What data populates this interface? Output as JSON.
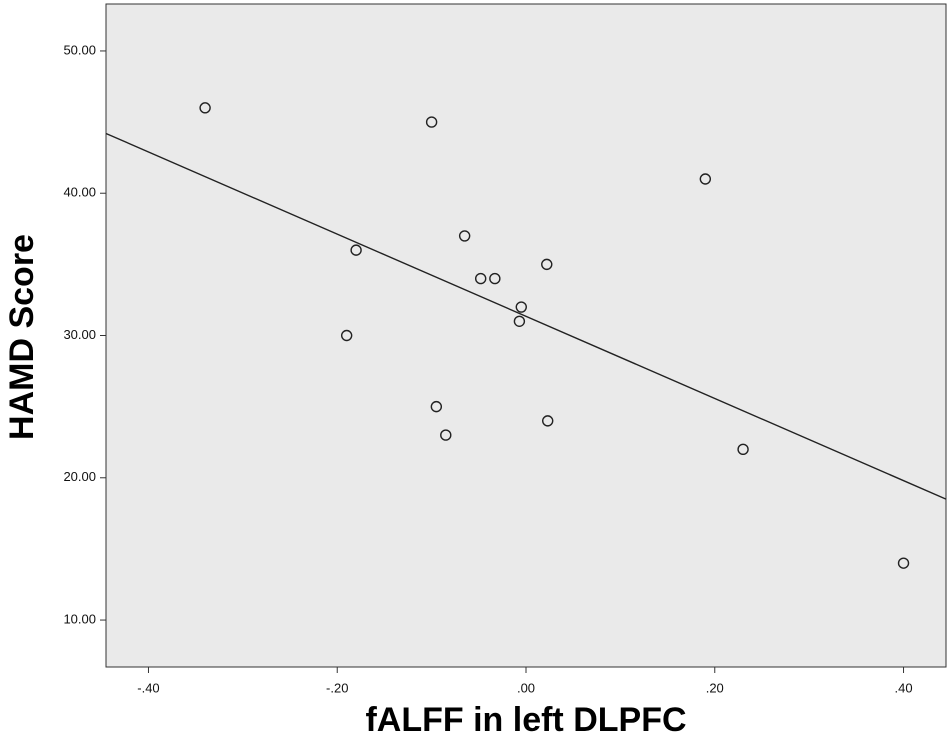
{
  "chart_data": {
    "type": "scatter",
    "title": "",
    "xlabel": "fALFF in left DLPFC",
    "ylabel": "HAMD Score",
    "xlim": [
      -0.445,
      0.445
    ],
    "ylim": [
      6.7,
      53.3
    ],
    "x_ticks": [
      -0.4,
      -0.2,
      0.0,
      0.2,
      0.4
    ],
    "x_tick_labels": [
      "-.40",
      "-.20",
      ".00",
      ".20",
      ".40"
    ],
    "y_ticks": [
      10,
      20,
      30,
      40,
      50
    ],
    "y_tick_labels": [
      "10.00",
      "20.00",
      "30.00",
      "40.00",
      "50.00"
    ],
    "grid": false,
    "series": [
      {
        "points": [
          {
            "x": -0.34,
            "y": 46
          },
          {
            "x": -0.1,
            "y": 45
          },
          {
            "x": 0.19,
            "y": 41
          },
          {
            "x": -0.065,
            "y": 37
          },
          {
            "x": -0.18,
            "y": 36
          },
          {
            "x": 0.022,
            "y": 35
          },
          {
            "x": -0.048,
            "y": 34
          },
          {
            "x": -0.033,
            "y": 34
          },
          {
            "x": -0.005,
            "y": 32
          },
          {
            "x": -0.007,
            "y": 31
          },
          {
            "x": -0.19,
            "y": 30
          },
          {
            "x": -0.095,
            "y": 25
          },
          {
            "x": 0.023,
            "y": 24
          },
          {
            "x": -0.085,
            "y": 23
          },
          {
            "x": 0.23,
            "y": 22
          },
          {
            "x": 0.4,
            "y": 14
          }
        ]
      }
    ],
    "fit_line": {
      "x": [
        -0.445,
        0.445
      ],
      "y": [
        44.2,
        18.5
      ]
    },
    "colors": {
      "plot_background": "#eaeaea",
      "marker_stroke": "#222222",
      "line": "#222222"
    }
  }
}
